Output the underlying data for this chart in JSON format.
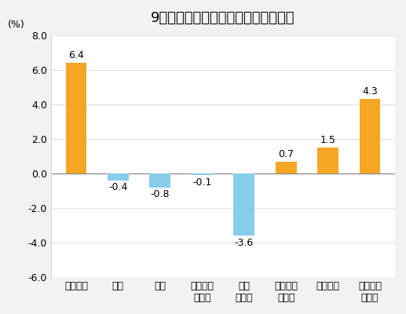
{
  "title": "9月份居民消费价格分类别同比涨跌幅",
  "ylabel": "(%)",
  "categories": [
    "食品烟酒",
    "衣着",
    "居住",
    "生活用品\n及服务",
    "交通\n和通信",
    "教育文化\n和娱乐",
    "医疗保健",
    "其他用品\n和服务"
  ],
  "values": [
    6.4,
    -0.4,
    -0.8,
    -0.1,
    -3.6,
    0.7,
    1.5,
    4.3
  ],
  "bar_colors": [
    "#F5A623",
    "#87CEEB",
    "#87CEEB",
    "#87CEEB",
    "#87CEEB",
    "#F5A623",
    "#F5A623",
    "#F5A623"
  ],
  "ylim": [
    -6.0,
    8.0
  ],
  "yticks": [
    -6.0,
    -4.0,
    -2.0,
    0.0,
    2.0,
    4.0,
    6.0,
    8.0
  ],
  "background_color": "#f2f2f2",
  "plot_bg_color": "#ffffff",
  "title_fontsize": 13,
  "label_fontsize": 9,
  "value_fontsize": 9,
  "ylabel_fontsize": 9
}
